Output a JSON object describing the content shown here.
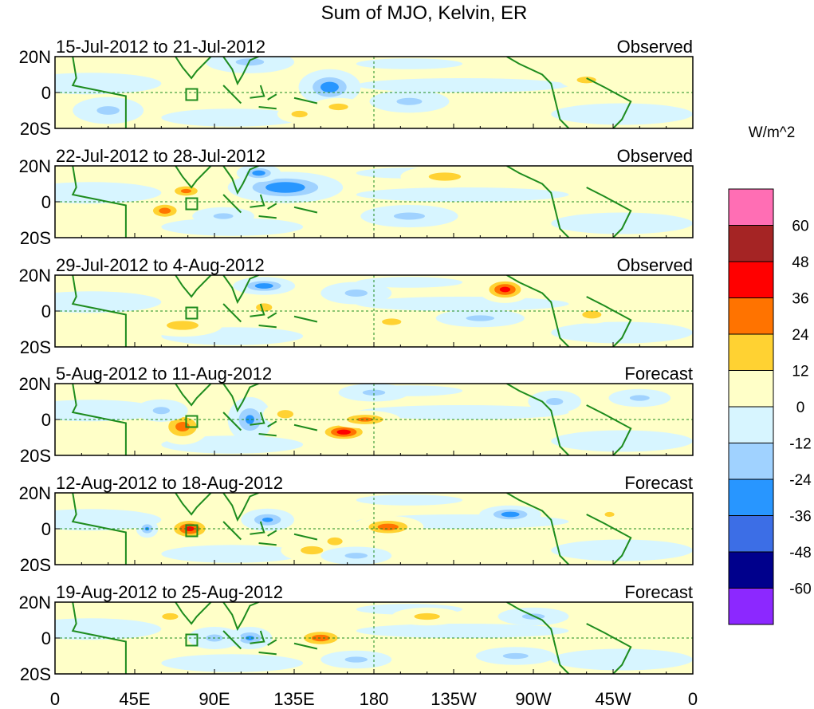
{
  "chart_data": {
    "type": "heatmap",
    "title": "Sum of MJO, Kelvin, ER",
    "units_label": "W/m^2",
    "x_tick_labels": [
      "0",
      "45E",
      "90E",
      "135E",
      "180",
      "135W",
      "90W",
      "45W",
      "0"
    ],
    "x_ticks_deg": [
      0,
      45,
      90,
      135,
      180,
      225,
      270,
      315,
      360
    ],
    "y_tick_labels": [
      "20N",
      "0",
      "20S"
    ],
    "y_ticks_deg": [
      20,
      0,
      -20
    ],
    "xlim": [
      0,
      360
    ],
    "ylim": [
      -20,
      20
    ],
    "colorbar": {
      "labels": [
        "60",
        "48",
        "36",
        "24",
        "12",
        "0",
        "-12",
        "-24",
        "-36",
        "-48",
        "-60"
      ],
      "levels": [
        60,
        48,
        36,
        24,
        12,
        0,
        -12,
        -24,
        -36,
        -48,
        -60
      ],
      "colors": [
        "#ff6eb4",
        "#a52424",
        "#ff0000",
        "#ff7300",
        "#ffd232",
        "#ffffc8",
        "#d7f5ff",
        "#a0d2ff",
        "#2896ff",
        "#3c6ee6",
        "#00008c",
        "#8c28ff"
      ]
    },
    "panels": [
      {
        "period": "15-Jul-2012 to 21-Jul-2012",
        "kind": "Observed",
        "anomalies": [
          {
            "lon": 155,
            "lat": 3,
            "value": -30,
            "rx": 14,
            "ry": 8
          },
          {
            "lon": 110,
            "lat": 17,
            "value": -12,
            "rx": 20,
            "ry": 5
          },
          {
            "lon": 160,
            "lat": -8,
            "value": 14,
            "rx": 12,
            "ry": 4
          },
          {
            "lon": 138,
            "lat": -12,
            "value": 14,
            "rx": 10,
            "ry": 4
          },
          {
            "lon": 300,
            "lat": 7,
            "value": 14,
            "rx": 12,
            "ry": 4
          },
          {
            "lon": 200,
            "lat": -5,
            "value": -12,
            "rx": 18,
            "ry": 5
          },
          {
            "lon": 30,
            "lat": -10,
            "value": -12,
            "rx": 16,
            "ry": 6
          }
        ]
      },
      {
        "period": "22-Jul-2012 to 28-Jul-2012",
        "kind": "Observed",
        "anomalies": [
          {
            "lon": 62,
            "lat": -5,
            "value": 28,
            "rx": 10,
            "ry": 5
          },
          {
            "lon": 74,
            "lat": 6,
            "value": 26,
            "rx": 10,
            "ry": 4
          },
          {
            "lon": 130,
            "lat": 8,
            "value": -34,
            "rx": 26,
            "ry": 7
          },
          {
            "lon": 115,
            "lat": 16,
            "value": -30,
            "rx": 10,
            "ry": 4
          },
          {
            "lon": 220,
            "lat": 14,
            "value": 14,
            "rx": 20,
            "ry": 5
          },
          {
            "lon": 95,
            "lat": -8,
            "value": -12,
            "rx": 14,
            "ry": 4
          },
          {
            "lon": 200,
            "lat": -8,
            "value": -12,
            "rx": 22,
            "ry": 5
          }
        ]
      },
      {
        "period": "29-Jul-2012 to 4-Aug-2012",
        "kind": "Observed",
        "anomalies": [
          {
            "lon": 254,
            "lat": 12,
            "value": 40,
            "rx": 12,
            "ry": 6
          },
          {
            "lon": 118,
            "lat": 14,
            "value": -30,
            "rx": 14,
            "ry": 4
          },
          {
            "lon": 72,
            "lat": -8,
            "value": 16,
            "rx": 18,
            "ry": 5
          },
          {
            "lon": 118,
            "lat": 2,
            "value": 14,
            "rx": 10,
            "ry": 5
          },
          {
            "lon": 190,
            "lat": -6,
            "value": 14,
            "rx": 12,
            "ry": 4
          },
          {
            "lon": 303,
            "lat": -2,
            "value": 18,
            "rx": 10,
            "ry": 4
          },
          {
            "lon": 170,
            "lat": 10,
            "value": -12,
            "rx": 16,
            "ry": 5
          },
          {
            "lon": 240,
            "lat": -4,
            "value": -12,
            "rx": 20,
            "ry": 4
          }
        ]
      },
      {
        "period": "5-Aug-2012 to 11-Aug-2012",
        "kind": "Forecast",
        "anomalies": [
          {
            "lon": 72,
            "lat": -4,
            "value": 28,
            "rx": 12,
            "ry": 8
          },
          {
            "lon": 163,
            "lat": -7,
            "value": 42,
            "rx": 14,
            "ry": 5
          },
          {
            "lon": 175,
            "lat": 0,
            "value": 26,
            "rx": 16,
            "ry": 4
          },
          {
            "lon": 110,
            "lat": 0,
            "value": -24,
            "rx": 10,
            "ry": 10
          },
          {
            "lon": 60,
            "lat": 5,
            "value": -12,
            "rx": 12,
            "ry": 5
          },
          {
            "lon": 180,
            "lat": 15,
            "value": -12,
            "rx": 16,
            "ry": 4
          },
          {
            "lon": 282,
            "lat": 10,
            "value": -12,
            "rx": 12,
            "ry": 5
          },
          {
            "lon": 330,
            "lat": 12,
            "value": -12,
            "rx": 14,
            "ry": 4
          },
          {
            "lon": 130,
            "lat": 3,
            "value": 14,
            "rx": 10,
            "ry": 5
          }
        ]
      },
      {
        "period": "12-Aug-2012 to 18-Aug-2012",
        "kind": "Forecast",
        "anomalies": [
          {
            "lon": 76,
            "lat": 0,
            "value": 38,
            "rx": 12,
            "ry": 6
          },
          {
            "lon": 188,
            "lat": 1,
            "value": 30,
            "rx": 16,
            "ry": 5
          },
          {
            "lon": 120,
            "lat": 5,
            "value": -24,
            "rx": 12,
            "ry": 5
          },
          {
            "lon": 257,
            "lat": 8,
            "value": -30,
            "rx": 14,
            "ry": 4
          },
          {
            "lon": 145,
            "lat": -12,
            "value": 14,
            "rx": 14,
            "ry": 5
          },
          {
            "lon": 52,
            "lat": 0,
            "value": -24,
            "rx": 5,
            "ry": 4
          },
          {
            "lon": 158,
            "lat": -7,
            "value": 18,
            "rx": 8,
            "ry": 4
          },
          {
            "lon": 313,
            "lat": 8,
            "value": 14,
            "rx": 6,
            "ry": 3
          },
          {
            "lon": 170,
            "lat": -15,
            "value": -12,
            "rx": 16,
            "ry": 4
          }
        ]
      },
      {
        "period": "19-Aug-2012 to 25-Aug-2012",
        "kind": "Forecast",
        "anomalies": [
          {
            "lon": 150,
            "lat": 0,
            "value": 30,
            "rx": 14,
            "ry": 5
          },
          {
            "lon": 110,
            "lat": 0,
            "value": -24,
            "rx": 10,
            "ry": 5
          },
          {
            "lon": 90,
            "lat": 0,
            "value": -12,
            "rx": 12,
            "ry": 5
          },
          {
            "lon": 270,
            "lat": 12,
            "value": -12,
            "rx": 16,
            "ry": 4
          },
          {
            "lon": 210,
            "lat": 12,
            "value": 14,
            "rx": 16,
            "ry": 4
          },
          {
            "lon": 260,
            "lat": -10,
            "value": -12,
            "rx": 18,
            "ry": 4
          },
          {
            "lon": 65,
            "lat": 12,
            "value": 14,
            "rx": 10,
            "ry": 4
          },
          {
            "lon": 170,
            "lat": -12,
            "value": -12,
            "rx": 16,
            "ry": 4
          }
        ]
      }
    ]
  }
}
